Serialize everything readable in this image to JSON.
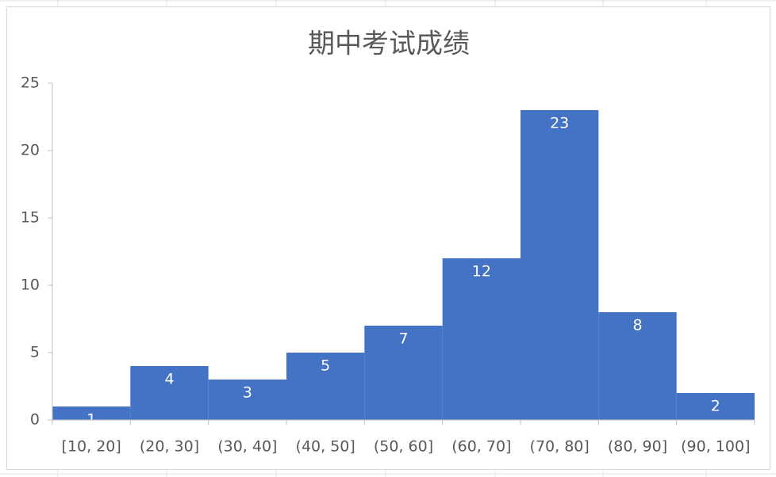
{
  "chart_data": {
    "type": "bar",
    "title": "期中考试成绩",
    "categories": [
      "[10, 20]",
      "(20, 30]",
      "(30, 40]",
      "(40, 50]",
      "(50, 60]",
      "(60, 70]",
      "(70, 80]",
      "(80, 90]",
      "(90, 100]"
    ],
    "values": [
      1,
      4,
      3,
      5,
      7,
      12,
      23,
      8,
      2
    ],
    "color": "#4472c4",
    "ylim": [
      0,
      25
    ],
    "yticks": [
      0,
      5,
      10,
      15,
      20,
      25
    ],
    "grid": false
  }
}
